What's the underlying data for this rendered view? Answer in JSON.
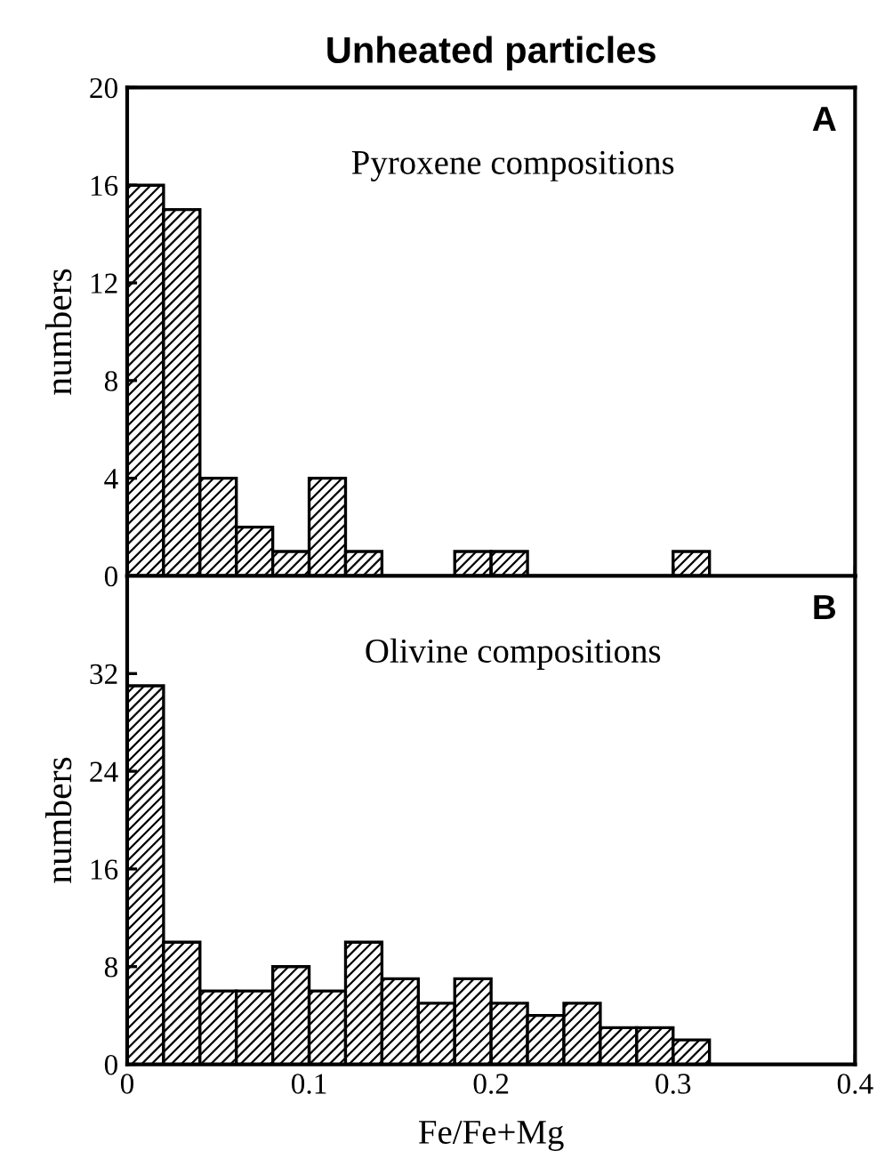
{
  "chart_data": [
    {
      "type": "histogram",
      "title": "Unheated particles",
      "subtitle": "Pyroxene compositions",
      "annotations": [
        "A"
      ],
      "ylabel": "numbers",
      "bins": [
        0,
        0.02,
        0.04,
        0.06,
        0.08,
        0.1,
        0.12,
        0.14,
        0.16,
        0.18,
        0.2,
        0.22,
        0.24,
        0.26,
        0.28,
        0.3,
        0.32
      ],
      "values": [
        16,
        15,
        4,
        2,
        1,
        4,
        1,
        0,
        0,
        1,
        1,
        0,
        0,
        0,
        0,
        1
      ],
      "color": "#000000",
      "xlim": [
        0,
        0.4
      ],
      "xticks": [
        0,
        0.1,
        0.2,
        0.3,
        0.4
      ],
      "ylim": [
        0,
        20
      ],
      "yticks": [
        0,
        4,
        8,
        12,
        16,
        20
      ],
      "tick_labels": "y",
      "grid": false,
      "legend": false
    },
    {
      "type": "histogram",
      "subtitle": "Olivine compositions",
      "annotations": [
        "B"
      ],
      "ylabel": "numbers",
      "xlabel": "Fe/Fe+Mg",
      "bins": [
        0,
        0.02,
        0.04,
        0.06,
        0.08,
        0.1,
        0.12,
        0.14,
        0.16,
        0.18,
        0.2,
        0.22,
        0.24,
        0.26,
        0.28,
        0.3,
        0.32
      ],
      "values": [
        31,
        10,
        6,
        6,
        8,
        6,
        10,
        7,
        5,
        7,
        5,
        4,
        5,
        3,
        3,
        2
      ],
      "color": "#000000",
      "xlim": [
        0,
        0.4
      ],
      "xticks": [
        0,
        0.1,
        0.2,
        0.3,
        0.4
      ],
      "ylim": [
        0,
        40
      ],
      "yticks": [
        0,
        8,
        16,
        24,
        32
      ],
      "grid": false,
      "legend": false
    }
  ]
}
